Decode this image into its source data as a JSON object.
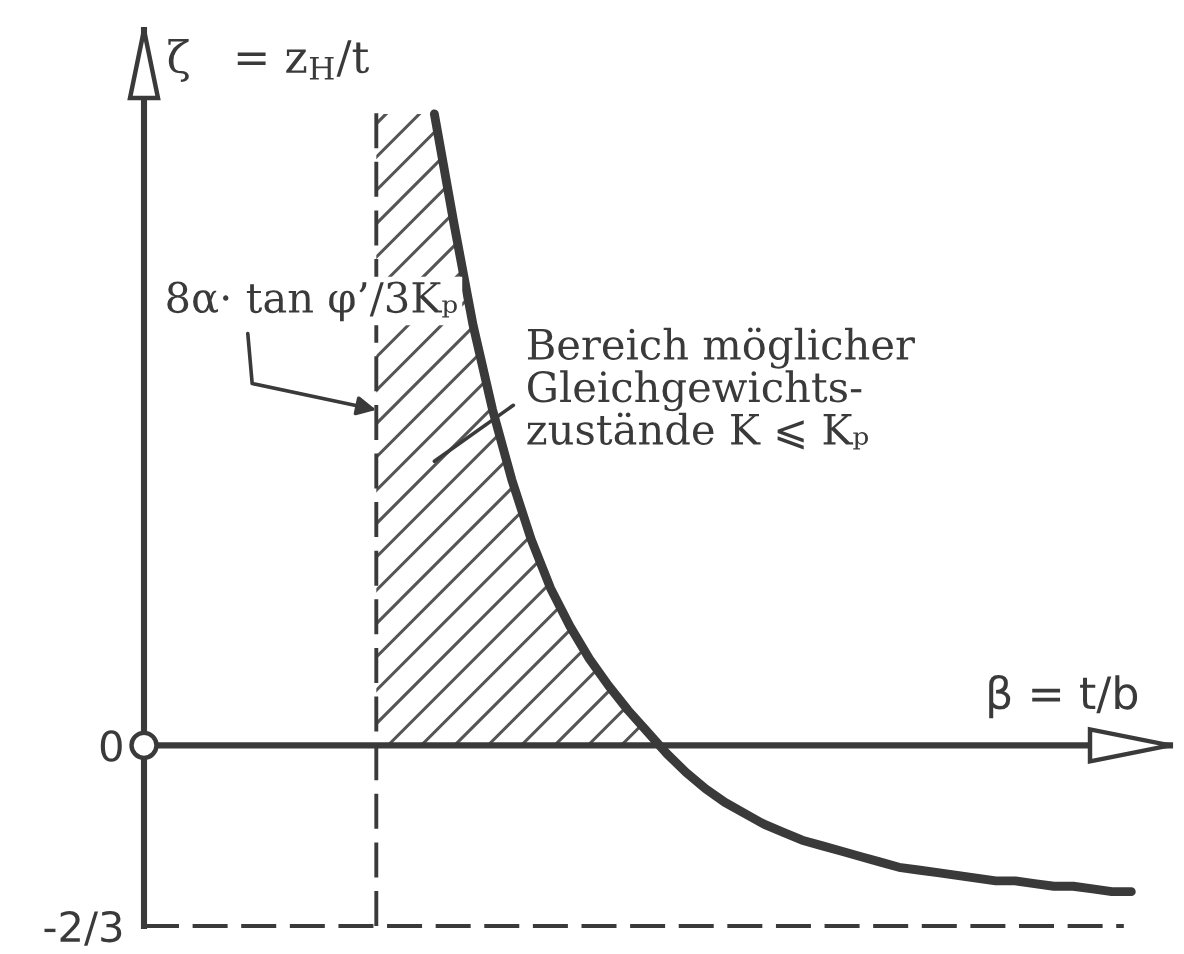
{
  "chart_data": {
    "type": "line",
    "xlabel": "β = t/b",
    "ylabel": "ζ   = z$_{H}$/t",
    "annotations": [
      "8α· tan φ’/3Kₚ"
    ],
    "categories": [
      null,
      null,
      null,
      null,
      null,
      null,
      null,
      null,
      null,
      null,
      null,
      null,
      null,
      null,
      null,
      null,
      null,
      null,
      null,
      null,
      null,
      null,
      null,
      null,
      null,
      null,
      null,
      null,
      null,
      null,
      null,
      null,
      null,
      null,
      null,
      null,
      null,
      null,
      null,
      null,
      null,
      null,
      null,
      null,
      null,
      null,
      null,
      null,
      null,
      null,
      null,
      null,
      null,
      null
    ],
    "series": [
      {
        "type": "area",
        "name": "Bereich möglicher\nGleichgewichts-\nzustände K ⩽ Kₚ",
        "color": "#555555",
        "values": [
          null,
          null,
          null,
          null,
          null,
          null,
          null,
          null,
          null,
          null,
          null,
          null,
          2.33,
          2.33,
          2.33,
          2.33,
          1.93,
          1.55,
          1.24,
          0.98,
          0.76,
          0.58,
          0.44,
          0.32,
          0.22,
          0.13,
          0.05,
          0,
          null,
          null,
          null,
          null,
          null,
          null,
          null,
          null,
          null,
          null,
          null,
          null,
          null,
          null,
          null,
          null,
          null,
          null,
          null,
          null,
          null,
          null,
          null,
          null,
          null,
          null
        ]
      },
      {
        "color": "#3a3a3a",
        "values": [
          null,
          null,
          null,
          null,
          null,
          null,
          null,
          null,
          null,
          null,
          null,
          null,
          null,
          null,
          null,
          2.33,
          1.93,
          1.55,
          1.24,
          0.98,
          0.76,
          0.58,
          0.44,
          0.32,
          0.22,
          0.13,
          0.05,
          -0.03,
          -0.1,
          -0.16,
          -0.21,
          -0.25,
          -0.29,
          -0.32,
          -0.35,
          -0.37,
          -0.39,
          -0.41,
          -0.43,
          -0.45,
          -0.46,
          -0.47,
          -0.48,
          -0.49,
          -0.5,
          -0.5,
          -0.51,
          -0.52,
          -0.52,
          -0.53,
          -0.54,
          -0.54,
          null,
          null
        ]
      }
    ],
    "ylim": [
      -0.6667,
      2.64
    ],
    "yticks": [
      0,
      {
        "value": -0.6667,
        "label": "-2/3"
      }
    ],
    "tick_labels": "y",
    "ref_lines": [
      {
        "axis": "y",
        "value": -0.6667,
        "line_style": "dashed"
      }
    ]
  }
}
